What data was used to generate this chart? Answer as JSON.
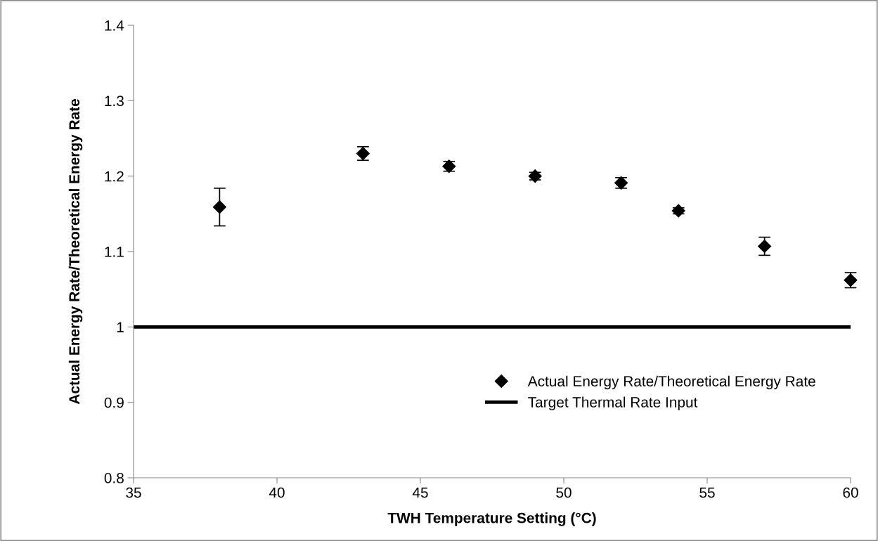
{
  "chart_data": {
    "type": "scatter",
    "xlabel": "TWH Temperature Setting (°C)",
    "ylabel": "Actual Energy Rate/Theoretical Energy Rate",
    "xlim": [
      35,
      60
    ],
    "xticks": [
      35,
      40,
      45,
      50,
      55,
      60
    ],
    "ylim": [
      0.8,
      1.4
    ],
    "yticks": [
      0.8,
      0.9,
      1,
      1.1,
      1.2,
      1.3,
      1.4
    ],
    "grid": false,
    "legend": "bottom right",
    "series": [
      {
        "name": "Actual Energy Rate/Theoretical Energy Rate",
        "color": "#000000",
        "marker": "diamond",
        "x": [
          38,
          43,
          46,
          49,
          52,
          54,
          57,
          60
        ],
        "values": [
          1.159,
          1.23,
          1.213,
          1.2,
          1.191,
          1.154,
          1.107,
          1.062
        ],
        "errors": [
          0.025,
          0.009,
          0.0065,
          0.005,
          0.007,
          0.004,
          0.012,
          0.01
        ]
      },
      {
        "name": "Target Thermal Rate Input",
        "type": "line",
        "color": "#000000",
        "line_style": "solid",
        "x": [
          35,
          60
        ],
        "values": [
          1,
          1
        ]
      }
    ]
  }
}
